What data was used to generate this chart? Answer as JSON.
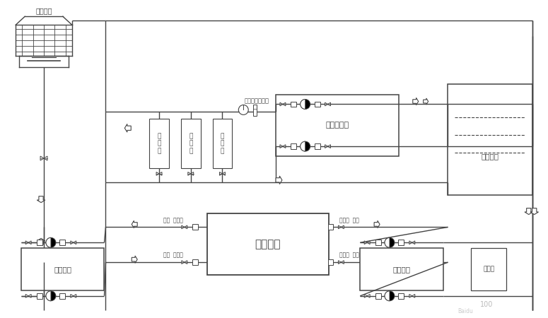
{
  "bg_color": "#ffffff",
  "lc": "#444444",
  "lw": 1.0,
  "tower_label": "冷却水塔",
  "prod_label": "生\n产\n线",
  "pressure_pump_label": "压力输出泵",
  "cold_tank_label": "冷冻水箱",
  "chiller_label": "冷冻机组",
  "cooling_pump_label": "冷却水泵",
  "cold_pump_label": "冷冻水泵",
  "pressure_gauge_label": "压力表、温度计",
  "valve_soft1": "阀阀  软接头",
  "valve_soft2": "阀阀  软接头",
  "soft_valve1": "软接头  阀阀",
  "soft_valve2": "软接头  阀阀",
  "filter_label": "过滤器"
}
